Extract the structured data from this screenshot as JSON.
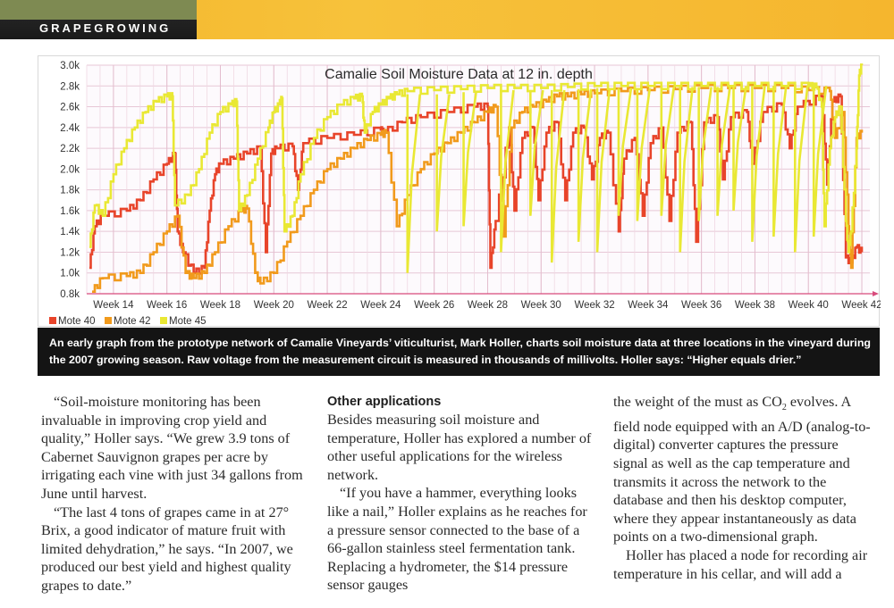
{
  "section_label": "GRAPEGROWING",
  "chart_data": {
    "type": "line",
    "title": "Camalie Soil Moisture Data at 12 in. depth",
    "xlabel": "",
    "ylabel": "",
    "x_tick_labels": [
      "Week 14",
      "Week 16",
      "Week 18",
      "Week 20",
      "Week 22",
      "Week 24",
      "Week 26",
      "Week 28",
      "Week 30",
      "Week 32",
      "Week 34",
      "Week 36",
      "Week 38",
      "Week 40",
      "Week 42"
    ],
    "x_tick_values": [
      14,
      16,
      18,
      20,
      22,
      24,
      26,
      28,
      30,
      32,
      34,
      36,
      38,
      40,
      42
    ],
    "xlim": [
      13,
      42.3
    ],
    "y_tick_labels": [
      "0.8k",
      "1.0k",
      "1.2k",
      "1.4k",
      "1.6k",
      "1.8k",
      "2.0k",
      "2.2k",
      "2.4k",
      "2.6k",
      "2.8k",
      "3.0k"
    ],
    "y_tick_values": [
      0.8,
      1.0,
      1.2,
      1.4,
      1.6,
      1.8,
      2.0,
      2.2,
      2.4,
      2.6,
      2.8,
      3.0
    ],
    "ylim": [
      0.8,
      3.0
    ],
    "grid": true,
    "legend_position": "bottom-left",
    "series": [
      {
        "name": "Mote 40",
        "color": "#e8442a",
        "points": [
          [
            13.1,
            1.05
          ],
          [
            13.3,
            1.45
          ],
          [
            13.6,
            1.55
          ],
          [
            14.5,
            1.6
          ],
          [
            15.0,
            1.7
          ],
          [
            15.5,
            1.9
          ],
          [
            16.0,
            2.05
          ],
          [
            16.3,
            2.15
          ],
          [
            16.4,
            1.4
          ],
          [
            16.6,
            1.2
          ],
          [
            17.0,
            1.0
          ],
          [
            17.4,
            1.05
          ],
          [
            17.6,
            1.6
          ],
          [
            17.8,
            1.95
          ],
          [
            18.0,
            2.05
          ],
          [
            18.5,
            2.1
          ],
          [
            19.0,
            2.15
          ],
          [
            19.5,
            2.2
          ],
          [
            19.7,
            1.2
          ],
          [
            19.9,
            2.15
          ],
          [
            20.1,
            2.2
          ],
          [
            20.7,
            2.22
          ],
          [
            20.9,
            1.8
          ],
          [
            21.1,
            2.25
          ],
          [
            22.0,
            2.3
          ],
          [
            23.0,
            2.33
          ],
          [
            24.0,
            2.38
          ],
          [
            24.1,
            2.35
          ],
          [
            24.8,
            2.45
          ],
          [
            25.5,
            2.5
          ],
          [
            26.5,
            2.55
          ],
          [
            27.5,
            2.6
          ],
          [
            28.0,
            2.6
          ],
          [
            28.1,
            1.05
          ],
          [
            28.3,
            1.5
          ],
          [
            28.8,
            2.4
          ],
          [
            29.0,
            1.6
          ],
          [
            29.3,
            2.3
          ],
          [
            29.7,
            2.4
          ],
          [
            29.9,
            1.7
          ],
          [
            30.2,
            2.35
          ],
          [
            30.6,
            2.45
          ],
          [
            30.9,
            1.7
          ],
          [
            31.2,
            2.35
          ],
          [
            31.6,
            2.4
          ],
          [
            31.9,
            1.9
          ],
          [
            32.2,
            2.3
          ],
          [
            32.5,
            2.35
          ],
          [
            32.9,
            1.4
          ],
          [
            33.1,
            2.1
          ],
          [
            33.5,
            2.3
          ],
          [
            33.8,
            1.55
          ],
          [
            34.1,
            2.25
          ],
          [
            34.5,
            2.4
          ],
          [
            34.8,
            1.5
          ],
          [
            35.1,
            2.35
          ],
          [
            35.6,
            2.45
          ],
          [
            35.8,
            1.3
          ],
          [
            36.1,
            2.45
          ],
          [
            36.6,
            2.5
          ],
          [
            36.8,
            1.9
          ],
          [
            37.1,
            2.5
          ],
          [
            37.7,
            2.55
          ],
          [
            37.9,
            2.05
          ],
          [
            38.3,
            2.55
          ],
          [
            39.0,
            2.62
          ],
          [
            39.3,
            2.2
          ],
          [
            39.6,
            2.6
          ],
          [
            40.5,
            2.7
          ],
          [
            40.7,
            1.85
          ],
          [
            40.9,
            2.65
          ],
          [
            41.2,
            2.7
          ],
          [
            41.4,
            1.15
          ],
          [
            41.6,
            1.1
          ],
          [
            41.8,
            1.25
          ],
          [
            42.0,
            1.2
          ]
        ]
      },
      {
        "name": "Mote 42",
        "color": "#f19a1c",
        "points": [
          [
            13.2,
            0.82
          ],
          [
            13.6,
            0.95
          ],
          [
            14.5,
            0.97
          ],
          [
            15.0,
            1.0
          ],
          [
            15.5,
            1.2
          ],
          [
            16.0,
            1.4
          ],
          [
            16.4,
            1.55
          ],
          [
            16.7,
            1.0
          ],
          [
            17.0,
            0.95
          ],
          [
            17.4,
            1.0
          ],
          [
            17.8,
            1.2
          ],
          [
            18.3,
            1.45
          ],
          [
            18.8,
            1.6
          ],
          [
            19.0,
            1.62
          ],
          [
            19.3,
            1.0
          ],
          [
            19.5,
            0.9
          ],
          [
            20.0,
            1.0
          ],
          [
            20.5,
            1.3
          ],
          [
            21.0,
            1.55
          ],
          [
            21.5,
            1.8
          ],
          [
            22.0,
            2.0
          ],
          [
            22.5,
            2.1
          ],
          [
            23.0,
            2.2
          ],
          [
            23.5,
            2.28
          ],
          [
            24.0,
            2.33
          ],
          [
            24.2,
            2.35
          ],
          [
            24.6,
            1.45
          ],
          [
            25.0,
            1.75
          ],
          [
            25.5,
            2.0
          ],
          [
            26.0,
            2.15
          ],
          [
            26.5,
            2.25
          ],
          [
            27.0,
            2.35
          ],
          [
            27.5,
            2.45
          ],
          [
            28.0,
            2.55
          ],
          [
            28.3,
            2.6
          ],
          [
            28.6,
            1.35
          ],
          [
            28.9,
            2.4
          ],
          [
            29.3,
            2.55
          ],
          [
            29.7,
            2.6
          ],
          [
            30.2,
            2.65
          ],
          [
            30.6,
            2.7
          ],
          [
            31.0,
            2.7
          ],
          [
            31.5,
            2.72
          ],
          [
            32.0,
            2.73
          ],
          [
            33.0,
            2.75
          ],
          [
            34.0,
            2.76
          ],
          [
            35.0,
            2.77
          ],
          [
            36.0,
            2.78
          ],
          [
            37.0,
            2.78
          ],
          [
            38.0,
            2.78
          ],
          [
            39.0,
            2.78
          ],
          [
            40.0,
            2.76
          ],
          [
            40.8,
            2.75
          ],
          [
            41.0,
            2.3
          ],
          [
            41.3,
            2.55
          ],
          [
            41.5,
            1.45
          ],
          [
            41.6,
            1.05
          ],
          [
            41.8,
            2.3
          ],
          [
            42.0,
            2.35
          ]
        ]
      },
      {
        "name": "Mote 45",
        "color": "#e9e834",
        "points": [
          [
            13.1,
            1.25
          ],
          [
            13.3,
            1.65
          ],
          [
            13.6,
            1.55
          ],
          [
            14.0,
            1.95
          ],
          [
            14.4,
            2.2
          ],
          [
            14.8,
            2.4
          ],
          [
            15.2,
            2.55
          ],
          [
            15.6,
            2.65
          ],
          [
            16.0,
            2.7
          ],
          [
            16.2,
            2.7
          ],
          [
            16.3,
            1.65
          ],
          [
            16.8,
            1.75
          ],
          [
            17.2,
            2.0
          ],
          [
            17.6,
            2.35
          ],
          [
            18.0,
            2.55
          ],
          [
            18.4,
            2.62
          ],
          [
            18.6,
            2.65
          ],
          [
            18.7,
            1.6
          ],
          [
            19.0,
            1.75
          ],
          [
            19.4,
            2.1
          ],
          [
            19.8,
            2.4
          ],
          [
            20.0,
            2.55
          ],
          [
            20.2,
            2.62
          ],
          [
            20.3,
            2.68
          ],
          [
            20.4,
            1.4
          ],
          [
            20.7,
            1.55
          ],
          [
            21.0,
            1.95
          ],
          [
            21.5,
            2.3
          ],
          [
            22.0,
            2.5
          ],
          [
            22.5,
            2.62
          ],
          [
            23.0,
            2.68
          ],
          [
            23.3,
            2.7
          ],
          [
            23.4,
            2.35
          ],
          [
            23.7,
            2.55
          ],
          [
            24.0,
            2.62
          ],
          [
            24.3,
            2.68
          ],
          [
            24.6,
            2.72
          ],
          [
            25.0,
            2.75
          ],
          [
            26.0,
            2.76
          ],
          [
            27.0,
            2.77
          ],
          [
            28.0,
            2.78
          ],
          [
            29.0,
            2.78
          ],
          [
            30.0,
            2.78
          ],
          [
            31.0,
            2.79
          ],
          [
            32.0,
            2.8
          ],
          [
            33.0,
            2.8
          ],
          [
            34.0,
            2.8
          ],
          [
            35.0,
            2.8
          ],
          [
            36.0,
            2.8
          ],
          [
            37.0,
            2.8
          ],
          [
            38.0,
            2.8
          ],
          [
            39.0,
            2.8
          ],
          [
            40.0,
            2.8
          ],
          [
            40.3,
            2.79
          ],
          [
            40.5,
            2.6
          ],
          [
            40.6,
            1.45
          ],
          [
            40.8,
            2.2
          ],
          [
            41.0,
            2.5
          ],
          [
            41.2,
            2.6
          ],
          [
            41.4,
            1.5
          ],
          [
            41.5,
            1.2
          ],
          [
            41.6,
            1.4
          ],
          [
            41.8,
            2.2
          ],
          [
            41.9,
            2.9
          ],
          [
            42.0,
            3.0
          ]
        ],
        "dips": [
          [
            25.0,
            1.0,
            2.72
          ],
          [
            26.1,
            1.4,
            2.72
          ],
          [
            27.1,
            1.45,
            2.74
          ],
          [
            28.5,
            1.2,
            2.76
          ],
          [
            29.6,
            1.55,
            2.76
          ],
          [
            30.4,
            1.1,
            2.76
          ],
          [
            31.4,
            1.3,
            2.77
          ],
          [
            32.1,
            1.2,
            2.78
          ],
          [
            32.9,
            1.55,
            2.78
          ],
          [
            33.6,
            1.5,
            2.78
          ],
          [
            34.5,
            1.55,
            2.79
          ],
          [
            35.2,
            1.2,
            2.79
          ],
          [
            35.9,
            1.5,
            2.79
          ],
          [
            36.6,
            1.55,
            2.79
          ],
          [
            37.2,
            1.6,
            2.8
          ],
          [
            37.9,
            1.3,
            2.8
          ],
          [
            38.7,
            1.35,
            2.8
          ],
          [
            39.5,
            1.2,
            2.8
          ],
          [
            40.2,
            1.35,
            2.8
          ]
        ]
      }
    ]
  },
  "caption": "An early graph from the prototype network of Camalie Vineyards’ viticulturist, Mark Holler, charts soil moisture data at three locations in the vineyard during the 2007 growing season. Raw voltage from the measurement circuit is measured in thousands of millivolts. Holler says: “Higher equals drier.”",
  "article": {
    "col1": [
      "“Soil-moisture monitoring has been invaluable in improving crop yield and quality,” Holler says. “We grew 3.9 tons of Cabernet Sauvignon grapes per acre by irrigating each vine with just 34 gallons from June until harvest.",
      "“The last 4 tons of grapes came in at 27° Brix, a good indicator of mature fruit with limited dehydration,” he says. “In 2007, we produced our best yield and highest quality grapes to date.”"
    ],
    "col2_heading": "Other applications",
    "col2": [
      "Besides measuring soil moisture and temperature, Holler has explored a number of other useful applications for the wireless network.",
      "“If you have a hammer, everything looks like a nail,” Holler explains as he reaches for a pressure sensor connected to the base of a 66-gallon stainless steel fermentation tank. Replacing a hydrometer, the $14 pressure sensor gauges"
    ],
    "col3_lead": "the weight of the must as CO",
    "col3_sub": "2",
    "col3_rest": " evolves. A field node equipped with an A/D (analog-to-digital) converter captures the pressure signal as well as the cap temperature and transmits it across the network to the database and then his desktop computer, where they appear instantaneously as data points on a two-dimensional graph.",
    "col3_para2": "Holler has placed a node for recording air temperature in his cellar, and will add a"
  }
}
